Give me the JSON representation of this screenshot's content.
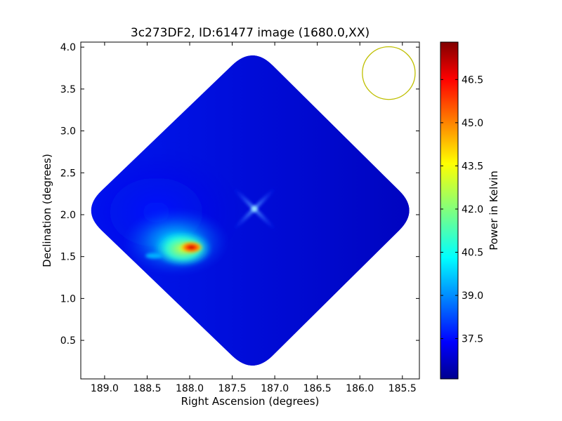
{
  "chart_data": {
    "type": "heatmap",
    "title": "3c273DF2, ID:61477 image (1680.0,XX)",
    "xlabel": "Right Ascension (degrees)",
    "ylabel": "Declination (degrees)",
    "xlim": [
      189.28,
      185.3
    ],
    "ylim": [
      0.04,
      4.06
    ],
    "x_ticks": [
      189.0,
      188.5,
      188.0,
      187.5,
      187.0,
      186.5,
      186.0,
      185.5
    ],
    "x_tick_labels": [
      "189.0",
      "188.5",
      "188.0",
      "187.5",
      "187.0",
      "186.5",
      "186.0",
      "185.5"
    ],
    "y_ticks": [
      0.5,
      1.0,
      1.5,
      2.0,
      2.5,
      3.0,
      3.5,
      4.0
    ],
    "y_tick_labels": [
      "0.5",
      "1.0",
      "1.5",
      "2.0",
      "2.5",
      "3.0",
      "3.5",
      "4.0"
    ],
    "grid": false,
    "image_region": {
      "shape": "rotated square (diamond)",
      "center": [
        187.26,
        2.05
      ],
      "vertices": [
        [
          187.26,
          4.02
        ],
        [
          185.3,
          2.05
        ],
        [
          187.26,
          0.08
        ],
        [
          189.28,
          2.05
        ]
      ]
    },
    "features": [
      {
        "type": "peak",
        "ra": 187.98,
        "dec": 1.61,
        "value": 47.4
      },
      {
        "type": "secondary source",
        "ra": 188.42,
        "dec": 1.51,
        "value": 39.5
      },
      {
        "type": "cross artifact",
        "ra": 187.24,
        "dec": 2.07,
        "value": 37.8
      }
    ],
    "background_value": 36.3,
    "beam": {
      "ra": 185.66,
      "dec": 3.69,
      "radius_deg": 0.31,
      "color": "#bfbf00"
    },
    "colorbar": {
      "label": "Power in Kelvin",
      "range": [
        36.1,
        47.8
      ],
      "ticks": [
        37.5,
        39.0,
        40.5,
        42.0,
        43.5,
        45.0,
        46.5
      ],
      "tick_labels": [
        "37.5",
        "39.0",
        "40.5",
        "42.0",
        "43.5",
        "45.0",
        "46.5"
      ],
      "colormap": "jet"
    }
  }
}
